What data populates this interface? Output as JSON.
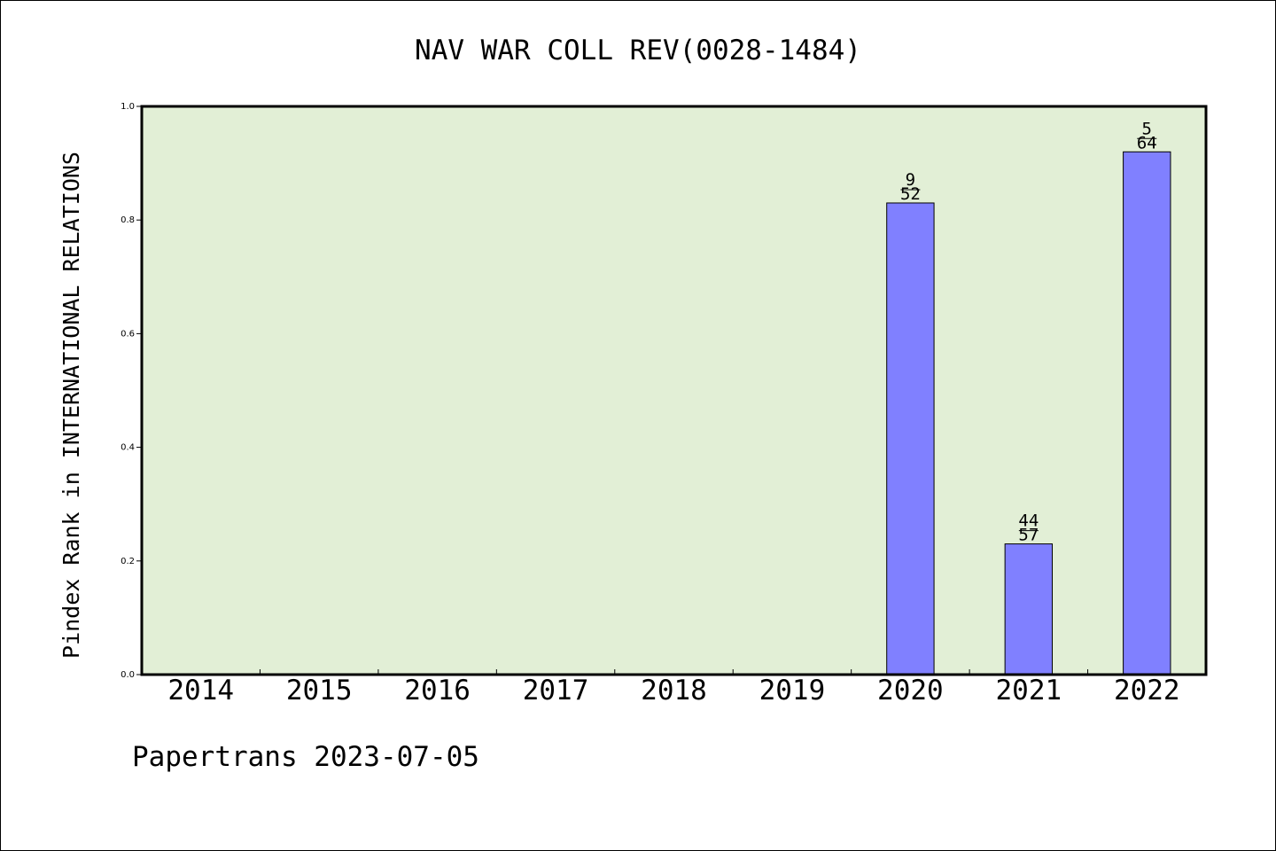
{
  "chart_data": {
    "type": "bar",
    "title": "NAV WAR COLL REV(0028-1484)",
    "xlabel": "",
    "ylabel": "Pindex Rank in INTERNATIONAL RELATIONS",
    "categories": [
      "2014",
      "2015",
      "2016",
      "2017",
      "2018",
      "2019",
      "2020",
      "2021",
      "2022"
    ],
    "values": [
      null,
      null,
      null,
      null,
      null,
      null,
      0.83,
      0.23,
      0.92
    ],
    "bar_labels": [
      null,
      null,
      null,
      null,
      null,
      null,
      {
        "top": "9",
        "bottom": "52"
      },
      {
        "top": "44",
        "bottom": "57"
      },
      {
        "top": "5",
        "bottom": "64"
      }
    ],
    "ylim": [
      0,
      1.0
    ],
    "yticks": [
      "0.0",
      "0.2",
      "0.4",
      "0.6",
      "0.8",
      "1.0"
    ],
    "grid": false,
    "colors": {
      "plot_background": "#e2efd6",
      "bar_fill": "#8080ff",
      "bar_stroke": "#000000"
    }
  },
  "footer": {
    "credit": "Papertrans 2023-07-05"
  }
}
